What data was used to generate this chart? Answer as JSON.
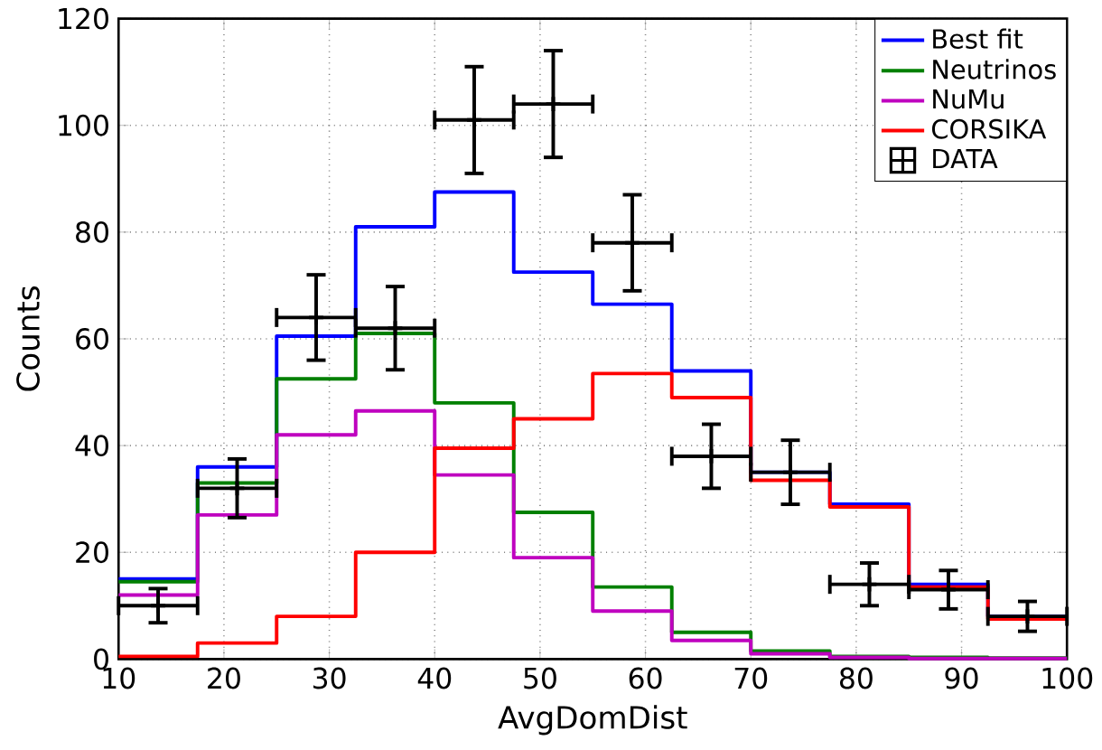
{
  "chart_data": {
    "type": "histogram",
    "xlabel": "AvgDomDist",
    "ylabel": "Counts",
    "bins": [
      10,
      17.5,
      25,
      32.5,
      40,
      47.5,
      55,
      62.5,
      70,
      77.5,
      85,
      92.5,
      100
    ],
    "series": [
      {
        "name": "Best fit",
        "color": "#0000ff",
        "values": [
          15,
          36,
          60.5,
          81,
          87.5,
          72.5,
          66.5,
          54,
          35,
          29,
          14,
          8
        ]
      },
      {
        "name": "Neutrinos",
        "color": "#008000",
        "values": [
          14.5,
          33,
          52.5,
          61,
          48,
          27.5,
          13.5,
          5,
          1.5,
          0.5,
          0.3,
          0.2
        ]
      },
      {
        "name": "NuMu",
        "color": "#bf00bf",
        "values": [
          12,
          27,
          42,
          46.5,
          34.5,
          19,
          9,
          3.5,
          1,
          0.3,
          0.1,
          0.1
        ]
      },
      {
        "name": "CORSIKA",
        "color": "#ff0000",
        "values": [
          0.5,
          3,
          8,
          20,
          39.5,
          45,
          53.5,
          49,
          33.5,
          28.5,
          13.5,
          7.5
        ]
      },
      {
        "name": "DATA",
        "type": "scatter",
        "marker": "cross",
        "color": "#000000",
        "x": [
          13.75,
          21.25,
          28.75,
          36.25,
          43.75,
          51.25,
          58.75,
          66.25,
          73.75,
          81.25,
          88.75,
          96.25
        ],
        "values": [
          10,
          32,
          64,
          62,
          101,
          104,
          78,
          38,
          35,
          14,
          13,
          8
        ],
        "errors": [
          3.2,
          5.5,
          8,
          7.8,
          10,
          10,
          9,
          6,
          6,
          4,
          3.6,
          2.8
        ],
        "xerrors": [
          3.75,
          3.75,
          3.75,
          3.75,
          3.75,
          3.75,
          3.75,
          3.75,
          3.75,
          3.75,
          3.75,
          3.75
        ]
      }
    ],
    "xlim": [
      10,
      100
    ],
    "ylim": [
      0,
      120
    ],
    "xticks": [
      10,
      20,
      30,
      40,
      50,
      60,
      70,
      80,
      90,
      100
    ],
    "yticks": [
      0,
      20,
      40,
      60,
      80,
      100,
      120
    ],
    "grid": true,
    "legend": "top right"
  }
}
